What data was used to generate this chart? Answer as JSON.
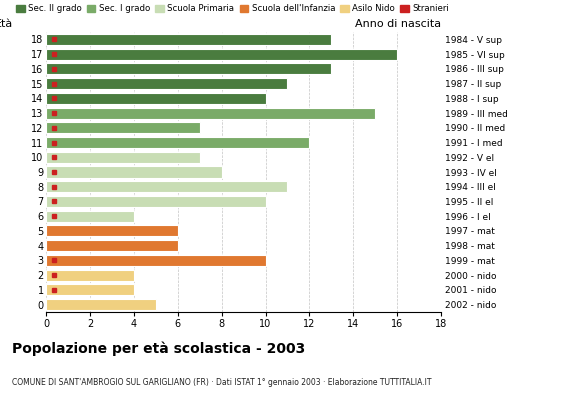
{
  "ages": [
    18,
    17,
    16,
    15,
    14,
    13,
    12,
    11,
    10,
    9,
    8,
    7,
    6,
    5,
    4,
    3,
    2,
    1,
    0
  ],
  "values": [
    13,
    16,
    13,
    11,
    10,
    15,
    7,
    12,
    7,
    8,
    11,
    10,
    4,
    6,
    6,
    10,
    4,
    4,
    5
  ],
  "stranieri": [
    1,
    1,
    1,
    1,
    1,
    1,
    1,
    1,
    1,
    1,
    1,
    1,
    1,
    0,
    0,
    1,
    1,
    1,
    0
  ],
  "labels_right": [
    "1984 - V sup",
    "1985 - VI sup",
    "1986 - III sup",
    "1987 - II sup",
    "1988 - I sup",
    "1989 - III med",
    "1990 - II med",
    "1991 - I med",
    "1992 - V el",
    "1993 - IV el",
    "1994 - III el",
    "1995 - II el",
    "1996 - I el",
    "1997 - mat",
    "1998 - mat",
    "1999 - mat",
    "2000 - nido",
    "2001 - nido",
    "2002 - nido"
  ],
  "colors": {
    "sec2": "#4a7c3f",
    "sec1": "#7aab68",
    "primaria": "#c8ddb4",
    "infanzia": "#e07830",
    "nido": "#f0d080",
    "stranieri": "#cc2020"
  },
  "bar_colors": [
    "sec2",
    "sec2",
    "sec2",
    "sec2",
    "sec2",
    "sec1",
    "sec1",
    "sec1",
    "primaria",
    "primaria",
    "primaria",
    "primaria",
    "primaria",
    "infanzia",
    "infanzia",
    "infanzia",
    "nido",
    "nido",
    "nido"
  ],
  "title": "Popolazione per età scolastica - 2003",
  "subtitle": "COMUNE DI SANT'AMBROGIO SUL GARIGLIANO (FR) · Dati ISTAT 1° gennaio 2003 · Elaborazione TUTTITALIA.IT",
  "ylabel_left": "Età",
  "ylabel_right": "Anno di nascita",
  "xlim": [
    0,
    18
  ],
  "xticks": [
    0,
    2,
    4,
    6,
    8,
    10,
    12,
    14,
    16,
    18
  ],
  "legend_labels": [
    "Sec. II grado",
    "Sec. I grado",
    "Scuola Primaria",
    "Scuola dell'Infanzia",
    "Asilo Nido",
    "Stranieri"
  ]
}
